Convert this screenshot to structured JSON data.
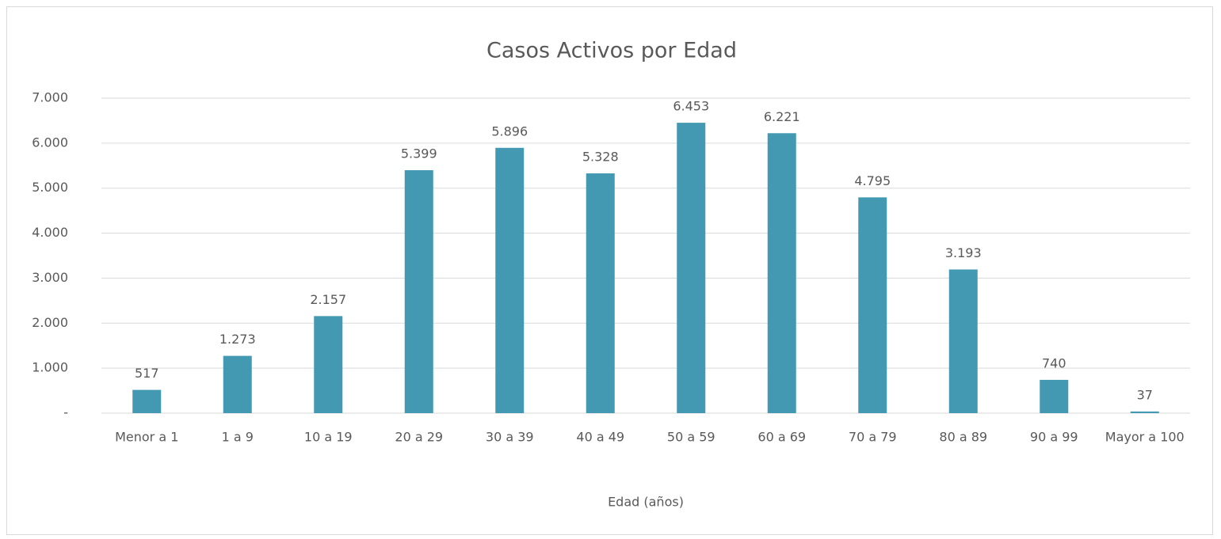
{
  "chart_data": {
    "type": "bar",
    "title": "Casos Activos por Edad",
    "x_label": "Edad (años)",
    "categories": [
      "Menor a 1",
      "1 a 9",
      "10 a 19",
      "20 a 29",
      "30 a 39",
      "40 a 49",
      "50 a 59",
      "60 a 69",
      "70 a 79",
      "80 a 89",
      "90 a 99",
      "Mayor a 100"
    ],
    "values": [
      517,
      1273,
      2157,
      5399,
      5896,
      5328,
      6453,
      6221,
      4795,
      3193,
      740,
      37
    ],
    "value_labels": [
      "517",
      "1.273",
      "2.157",
      "5.399",
      "5.896",
      "5.328",
      "6.453",
      "6.221",
      "4.795",
      "3.193",
      "740",
      "37"
    ],
    "color": "#4399b1",
    "ylim": [
      0,
      7000
    ],
    "yticks": [
      {
        "value": 0,
        "label": "-"
      },
      {
        "value": 1000,
        "label": "1.000"
      },
      {
        "value": 2000,
        "label": "2.000"
      },
      {
        "value": 3000,
        "label": "3.000"
      },
      {
        "value": 4000,
        "label": "4.000"
      },
      {
        "value": 5000,
        "label": "5.000"
      },
      {
        "value": 6000,
        "label": "6.000"
      },
      {
        "value": 7000,
        "label": "7.000"
      }
    ],
    "grid": true
  }
}
